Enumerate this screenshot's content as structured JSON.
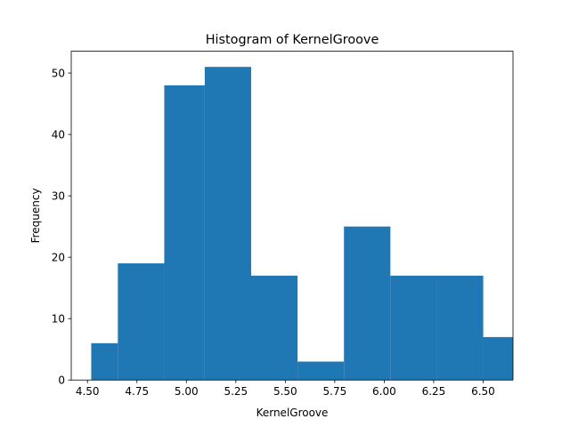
{
  "chart_data": {
    "type": "bar",
    "histogram": true,
    "title": "Histogram of KernelGroove",
    "xlabel": "KernelGroove",
    "ylabel": "Frequency",
    "bins": [
      {
        "x0": 4.519,
        "x1": 4.6536,
        "count": 6
      },
      {
        "x0": 4.6536,
        "x1": 4.8882,
        "count": 19
      },
      {
        "x0": 4.8882,
        "x1": 5.0928,
        "count": 48
      },
      {
        "x0": 5.0928,
        "x1": 5.3274,
        "count": 51
      },
      {
        "x0": 5.3274,
        "x1": 5.562,
        "count": 17
      },
      {
        "x0": 5.562,
        "x1": 5.7966,
        "count": 3
      },
      {
        "x0": 5.7966,
        "x1": 6.0312,
        "count": 25
      },
      {
        "x0": 6.0312,
        "x1": 6.2658,
        "count": 17
      },
      {
        "x0": 6.2658,
        "x1": 6.5004,
        "count": 17
      },
      {
        "x0": 6.5004,
        "x1": 6.735,
        "count": 7
      }
    ],
    "xlim": [
      4.418,
      6.651
    ],
    "ylim": [
      0,
      53.55
    ],
    "xticks": [
      "4.50",
      "4.75",
      "5.00",
      "5.25",
      "5.50",
      "5.75",
      "6.00",
      "6.25",
      "6.50"
    ],
    "yticks": [
      "0",
      "10",
      "20",
      "30",
      "40",
      "50"
    ],
    "bar_color": "#1f77b4",
    "grid": false,
    "legend": "none"
  }
}
